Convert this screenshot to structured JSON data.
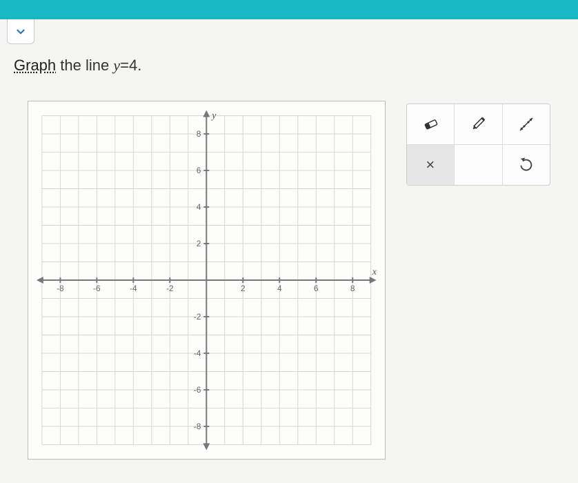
{
  "topbar": {
    "color": "#17b8c4"
  },
  "question": {
    "linked_word": "Graph",
    "text_after": " the line ",
    "equation_var": "y",
    "equation_eq": "=",
    "equation_val": "4",
    "period": "."
  },
  "graph": {
    "type": "cartesian-grid",
    "xlim": [
      -9,
      9
    ],
    "ylim": [
      -9,
      9
    ],
    "grid_step": 1,
    "tick_step": 2,
    "x_ticks": [
      "-8",
      "-6",
      "-4",
      "-2",
      "2",
      "4",
      "6",
      "8"
    ],
    "x_tick_vals": [
      -8,
      -6,
      -4,
      -2,
      2,
      4,
      6,
      8
    ],
    "y_ticks": [
      "8",
      "6",
      "4",
      "2",
      "-2",
      "-4",
      "-6",
      "-8"
    ],
    "y_tick_vals": [
      8,
      6,
      4,
      2,
      -2,
      -4,
      -6,
      -8
    ],
    "x_axis_label": "x",
    "y_axis_label": "y",
    "grid_color": "#d9d6d0",
    "axis_color": "#777",
    "background_color": "#fdfdfc"
  },
  "toolbox": {
    "tools": {
      "eraser": "eraser-icon",
      "pencil": "pencil-icon",
      "line": "line-icon",
      "clear": "×",
      "undo": "undo-icon"
    }
  }
}
